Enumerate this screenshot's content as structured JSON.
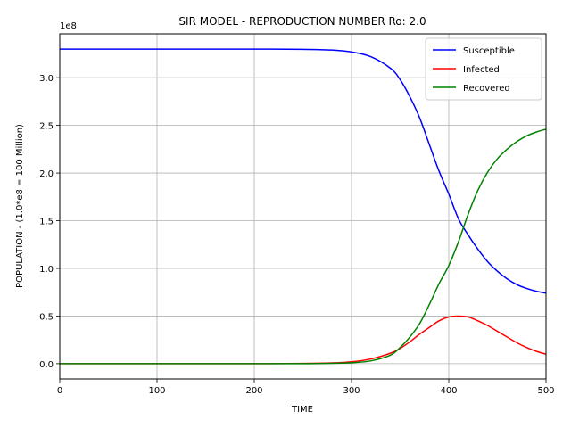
{
  "chart_data": {
    "type": "line",
    "title": "SIR MODEL - REPRODUCTION NUMBER Ro: 2.0",
    "xlabel": "TIME",
    "ylabel": "POPULATION - (1.0*e8 = 100 Million)",
    "y_offset_label": "1e8",
    "xlim": [
      0,
      500
    ],
    "ylim": [
      -0.16,
      3.46
    ],
    "x_ticks": [
      0,
      100,
      200,
      300,
      400,
      500
    ],
    "x_tick_labels": [
      "0",
      "100",
      "200",
      "300",
      "400",
      "500"
    ],
    "y_ticks": [
      0,
      0.5,
      1.0,
      1.5,
      2.0,
      2.5,
      3.0
    ],
    "y_tick_labels": [
      "0.0",
      "0.5",
      "1.0",
      "1.5",
      "2.0",
      "2.5",
      "3.0"
    ],
    "grid": true,
    "legend_position": "top-right",
    "x": [
      0,
      50,
      100,
      150,
      200,
      250,
      280,
      300,
      320,
      340,
      350,
      360,
      370,
      380,
      390,
      400,
      410,
      420,
      430,
      440,
      450,
      460,
      470,
      480,
      490,
      500
    ],
    "series": [
      {
        "name": "Susceptible",
        "color": "#0000ff",
        "values": [
          3.3,
          3.3,
          3.3,
          3.3,
          3.3,
          3.298,
          3.29,
          3.27,
          3.22,
          3.1,
          2.98,
          2.8,
          2.58,
          2.3,
          2.02,
          1.78,
          1.52,
          1.35,
          1.2,
          1.07,
          0.97,
          0.89,
          0.83,
          0.79,
          0.76,
          0.74
        ]
      },
      {
        "name": "Infected",
        "color": "#ff0000",
        "values": [
          0.0,
          0.0,
          0.0,
          0.0,
          0.0,
          0.002,
          0.008,
          0.02,
          0.05,
          0.11,
          0.16,
          0.23,
          0.31,
          0.38,
          0.45,
          0.49,
          0.5,
          0.49,
          0.45,
          0.4,
          0.34,
          0.28,
          0.22,
          0.17,
          0.13,
          0.1
        ]
      },
      {
        "name": "Recovered",
        "color": "#008000",
        "values": [
          0.0,
          0.0,
          0.0,
          0.0,
          0.0,
          0.0,
          0.004,
          0.01,
          0.03,
          0.09,
          0.17,
          0.28,
          0.42,
          0.62,
          0.84,
          1.03,
          1.28,
          1.57,
          1.82,
          2.01,
          2.15,
          2.25,
          2.33,
          2.39,
          2.43,
          2.46
        ]
      }
    ]
  }
}
